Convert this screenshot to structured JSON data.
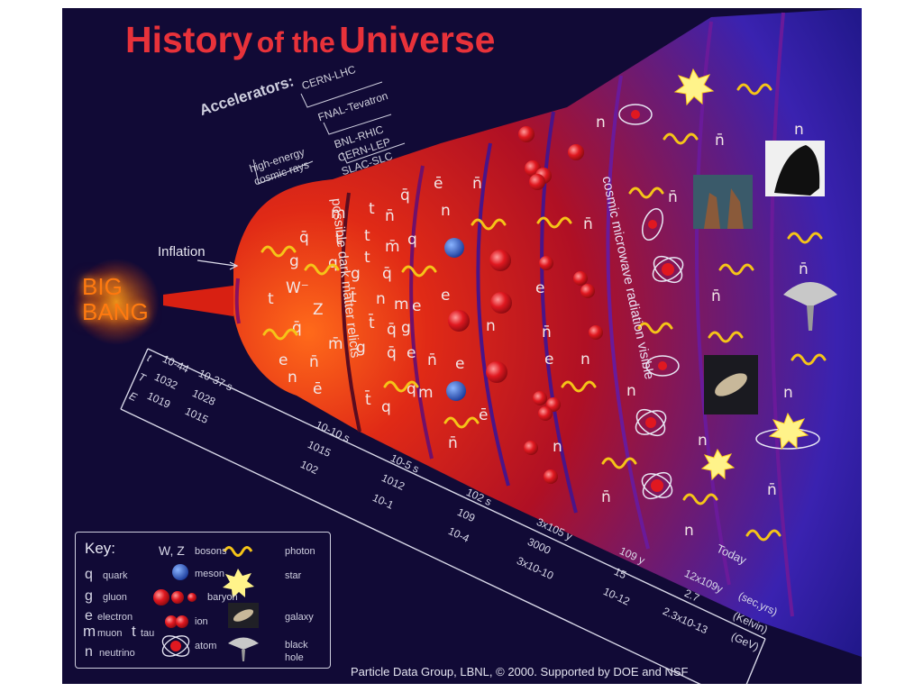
{
  "title": {
    "part1": "History",
    "part2": "of the",
    "part3": "Universe"
  },
  "accelerators": {
    "label": "Accelerators:",
    "items": [
      "CERN-LHC",
      "FNAL-Tevatron",
      "BNL-RHIC",
      "CERN-LEP",
      "SLAC-SLC"
    ],
    "cosmic": [
      "high-energy",
      "cosmic rays"
    ]
  },
  "inflation_label": "Inflation",
  "big_bang": [
    "BIG",
    "BANG"
  ],
  "eras": {
    "dark_matter": "possible dark matter relicts",
    "cmb": "cosmic microwave radiation visible"
  },
  "axis_rows": [
    "t",
    "T",
    "E"
  ],
  "axis_columns": [
    {
      "t": "10-44",
      "T": "1032",
      "E": "1019"
    },
    {
      "t": "10-37 s",
      "T": "1028",
      "E": "1015"
    },
    {
      "t": "10-10 s",
      "T": "1015",
      "E": "102"
    },
    {
      "t": "10-5 s",
      "T": "1012",
      "E": "10-1"
    },
    {
      "t": "102 s",
      "T": "109",
      "E": "10-4"
    },
    {
      "t": "3x105 y",
      "T": "3000",
      "E": "3x10-10"
    },
    {
      "t": "109 y",
      "T": "15",
      "E": "10-12"
    },
    {
      "t": "Today",
      "T": "",
      "E": ""
    }
  ],
  "today_values": {
    "t": "12x109y",
    "T": "2.7",
    "E": "2.3x10-13"
  },
  "units": [
    "(sec,yrs)",
    "(Kelvin)",
    "(GeV)"
  ],
  "today_label": "Today",
  "key": {
    "title": "Key:",
    "particles": [
      {
        "sym": "q",
        "label": "quark"
      },
      {
        "sym": "g",
        "label": "gluon"
      },
      {
        "sym": "e",
        "label": "electron"
      },
      {
        "sym": "m",
        "label": "muon"
      },
      {
        "sym": "t",
        "label": "tau"
      },
      {
        "sym": "n",
        "label": "neutrino"
      }
    ],
    "bosons_sym": "W, Z",
    "bosons_label": "bosons",
    "items": [
      "meson",
      "baryon",
      "ion",
      "atom",
      "photon",
      "star",
      "galaxy",
      "black hole"
    ]
  },
  "footer": "Particle Data Group, LBNL, © 2000.    Supported by DOE and NSF",
  "colors": {
    "background": "#110a36",
    "title": "#e8323a",
    "fire": "#d81f14",
    "cosmic": "#2a1a9a",
    "photon": "#f5c418"
  }
}
